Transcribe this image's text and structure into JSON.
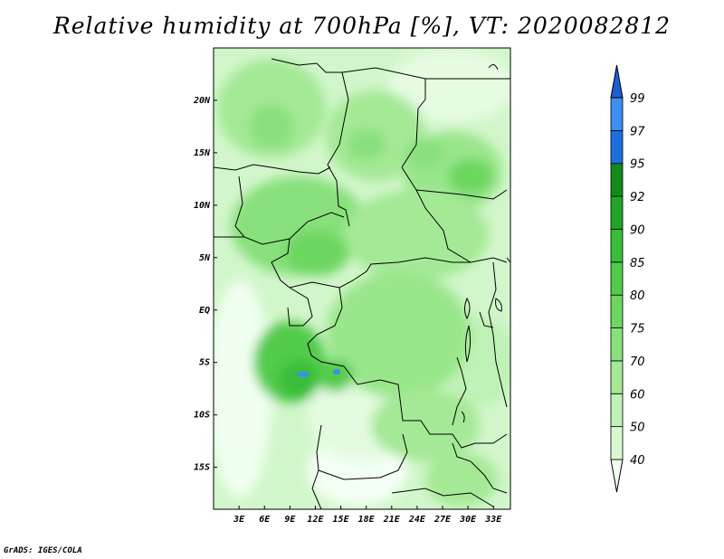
{
  "title": "Relative humidity at 700hPa [%], VT: 2020082812",
  "credit": "GrADS: IGES/COLA",
  "map": {
    "lat_labels": [
      "20N",
      "15N",
      "10N",
      "5N",
      "EQ",
      "5S",
      "10S",
      "15S"
    ],
    "lat_values": [
      20,
      15,
      10,
      5,
      0,
      -5,
      -10,
      -15
    ],
    "lon_labels": [
      "3E",
      "6E",
      "9E",
      "12E",
      "15E",
      "18E",
      "21E",
      "24E",
      "27E",
      "30E",
      "33E"
    ],
    "lon_values": [
      3,
      6,
      9,
      12,
      15,
      18,
      21,
      24,
      27,
      30,
      33
    ],
    "lat_range": [
      -19,
      25
    ],
    "lon_range": [
      0,
      35
    ]
  },
  "colorbar": {
    "levels": [
      "40",
      "50",
      "60",
      "70",
      "75",
      "80",
      "85",
      "90",
      "92",
      "95",
      "97",
      "99"
    ],
    "colors": [
      "#f0fff0",
      "#d8f8d2",
      "#bff2b6",
      "#a4e996",
      "#88e07c",
      "#6dd660",
      "#52cb4b",
      "#37bd3a",
      "#21a529",
      "#138b1a",
      "#1e6fde",
      "#3c8ef0",
      "#1c5fcf"
    ]
  }
}
